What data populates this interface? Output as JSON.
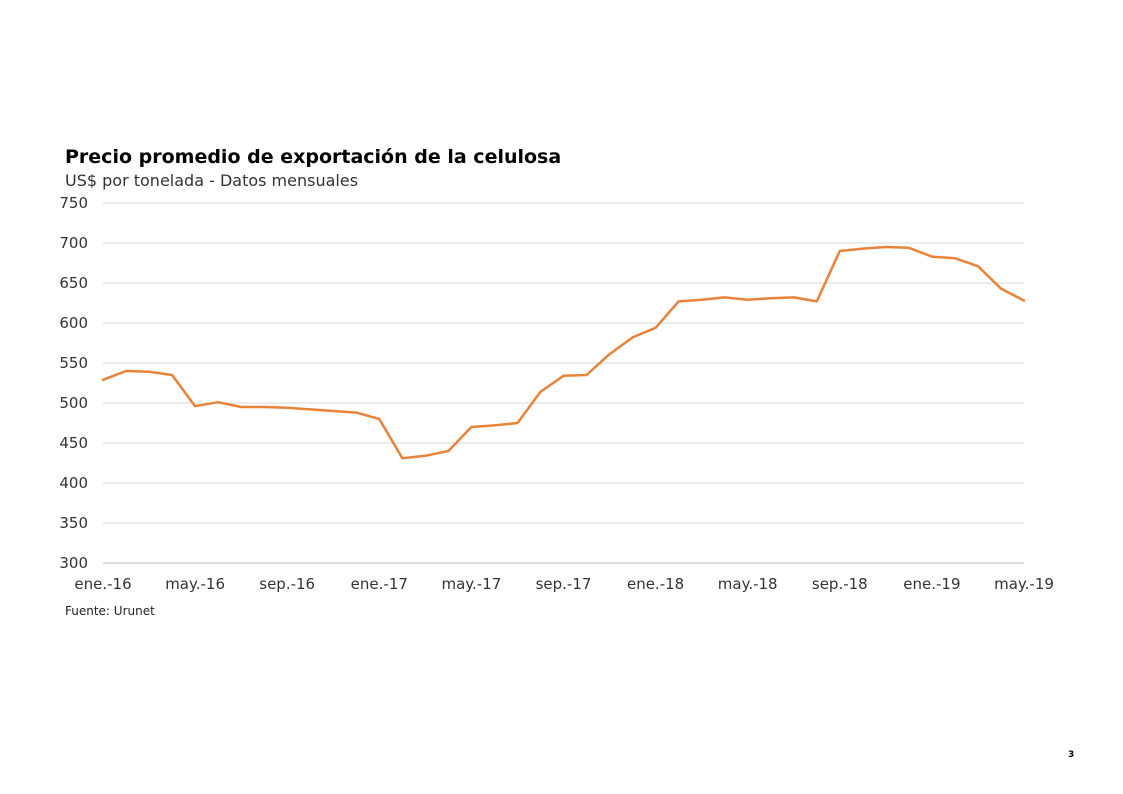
{
  "page_number": "3",
  "source": "Fuente: Urunet",
  "chart_data": {
    "type": "line",
    "title": "Precio promedio de exportación de la celulosa",
    "subtitle": "US$ por tonelada - Datos mensuales",
    "xlabel": "",
    "ylabel": "",
    "ylim": [
      300,
      750
    ],
    "yticks": [
      300,
      350,
      400,
      450,
      500,
      550,
      600,
      650,
      700,
      750
    ],
    "grid": true,
    "legend": "none",
    "x": [
      "ene.-16",
      "feb.-16",
      "mar.-16",
      "abr.-16",
      "may.-16",
      "jun.-16",
      "jul.-16",
      "ago.-16",
      "sep.-16",
      "oct.-16",
      "nov.-16",
      "dic.-16",
      "ene.-17",
      "feb.-17",
      "mar.-17",
      "abr.-17",
      "may.-17",
      "jun.-17",
      "jul.-17",
      "ago.-17",
      "sep.-17",
      "oct.-17",
      "nov.-17",
      "dic.-17",
      "ene.-18",
      "feb.-18",
      "mar.-18",
      "abr.-18",
      "may.-18",
      "jun.-18",
      "jul.-18",
      "ago.-18",
      "sep.-18",
      "oct.-18",
      "nov.-18",
      "dic.-18",
      "ene.-19",
      "feb.-19",
      "mar.-19",
      "abr.-19",
      "may.-19"
    ],
    "xtick_labels": [
      "ene.-16",
      "may.-16",
      "sep.-16",
      "ene.-17",
      "may.-17",
      "sep.-17",
      "ene.-18",
      "may.-18",
      "sep.-18",
      "ene.-19",
      "may.-19"
    ],
    "series": [
      {
        "name": "",
        "color": "#E8833A",
        "values": [
          529,
          540,
          539,
          535,
          496,
          501,
          495,
          495,
          494,
          492,
          490,
          488,
          480,
          431,
          434,
          440,
          470,
          472,
          475,
          514,
          534,
          535,
          561,
          582,
          594,
          627,
          629,
          632,
          629,
          631,
          632,
          627,
          690,
          693,
          695,
          694,
          683,
          681,
          671,
          643,
          628
        ]
      }
    ]
  }
}
